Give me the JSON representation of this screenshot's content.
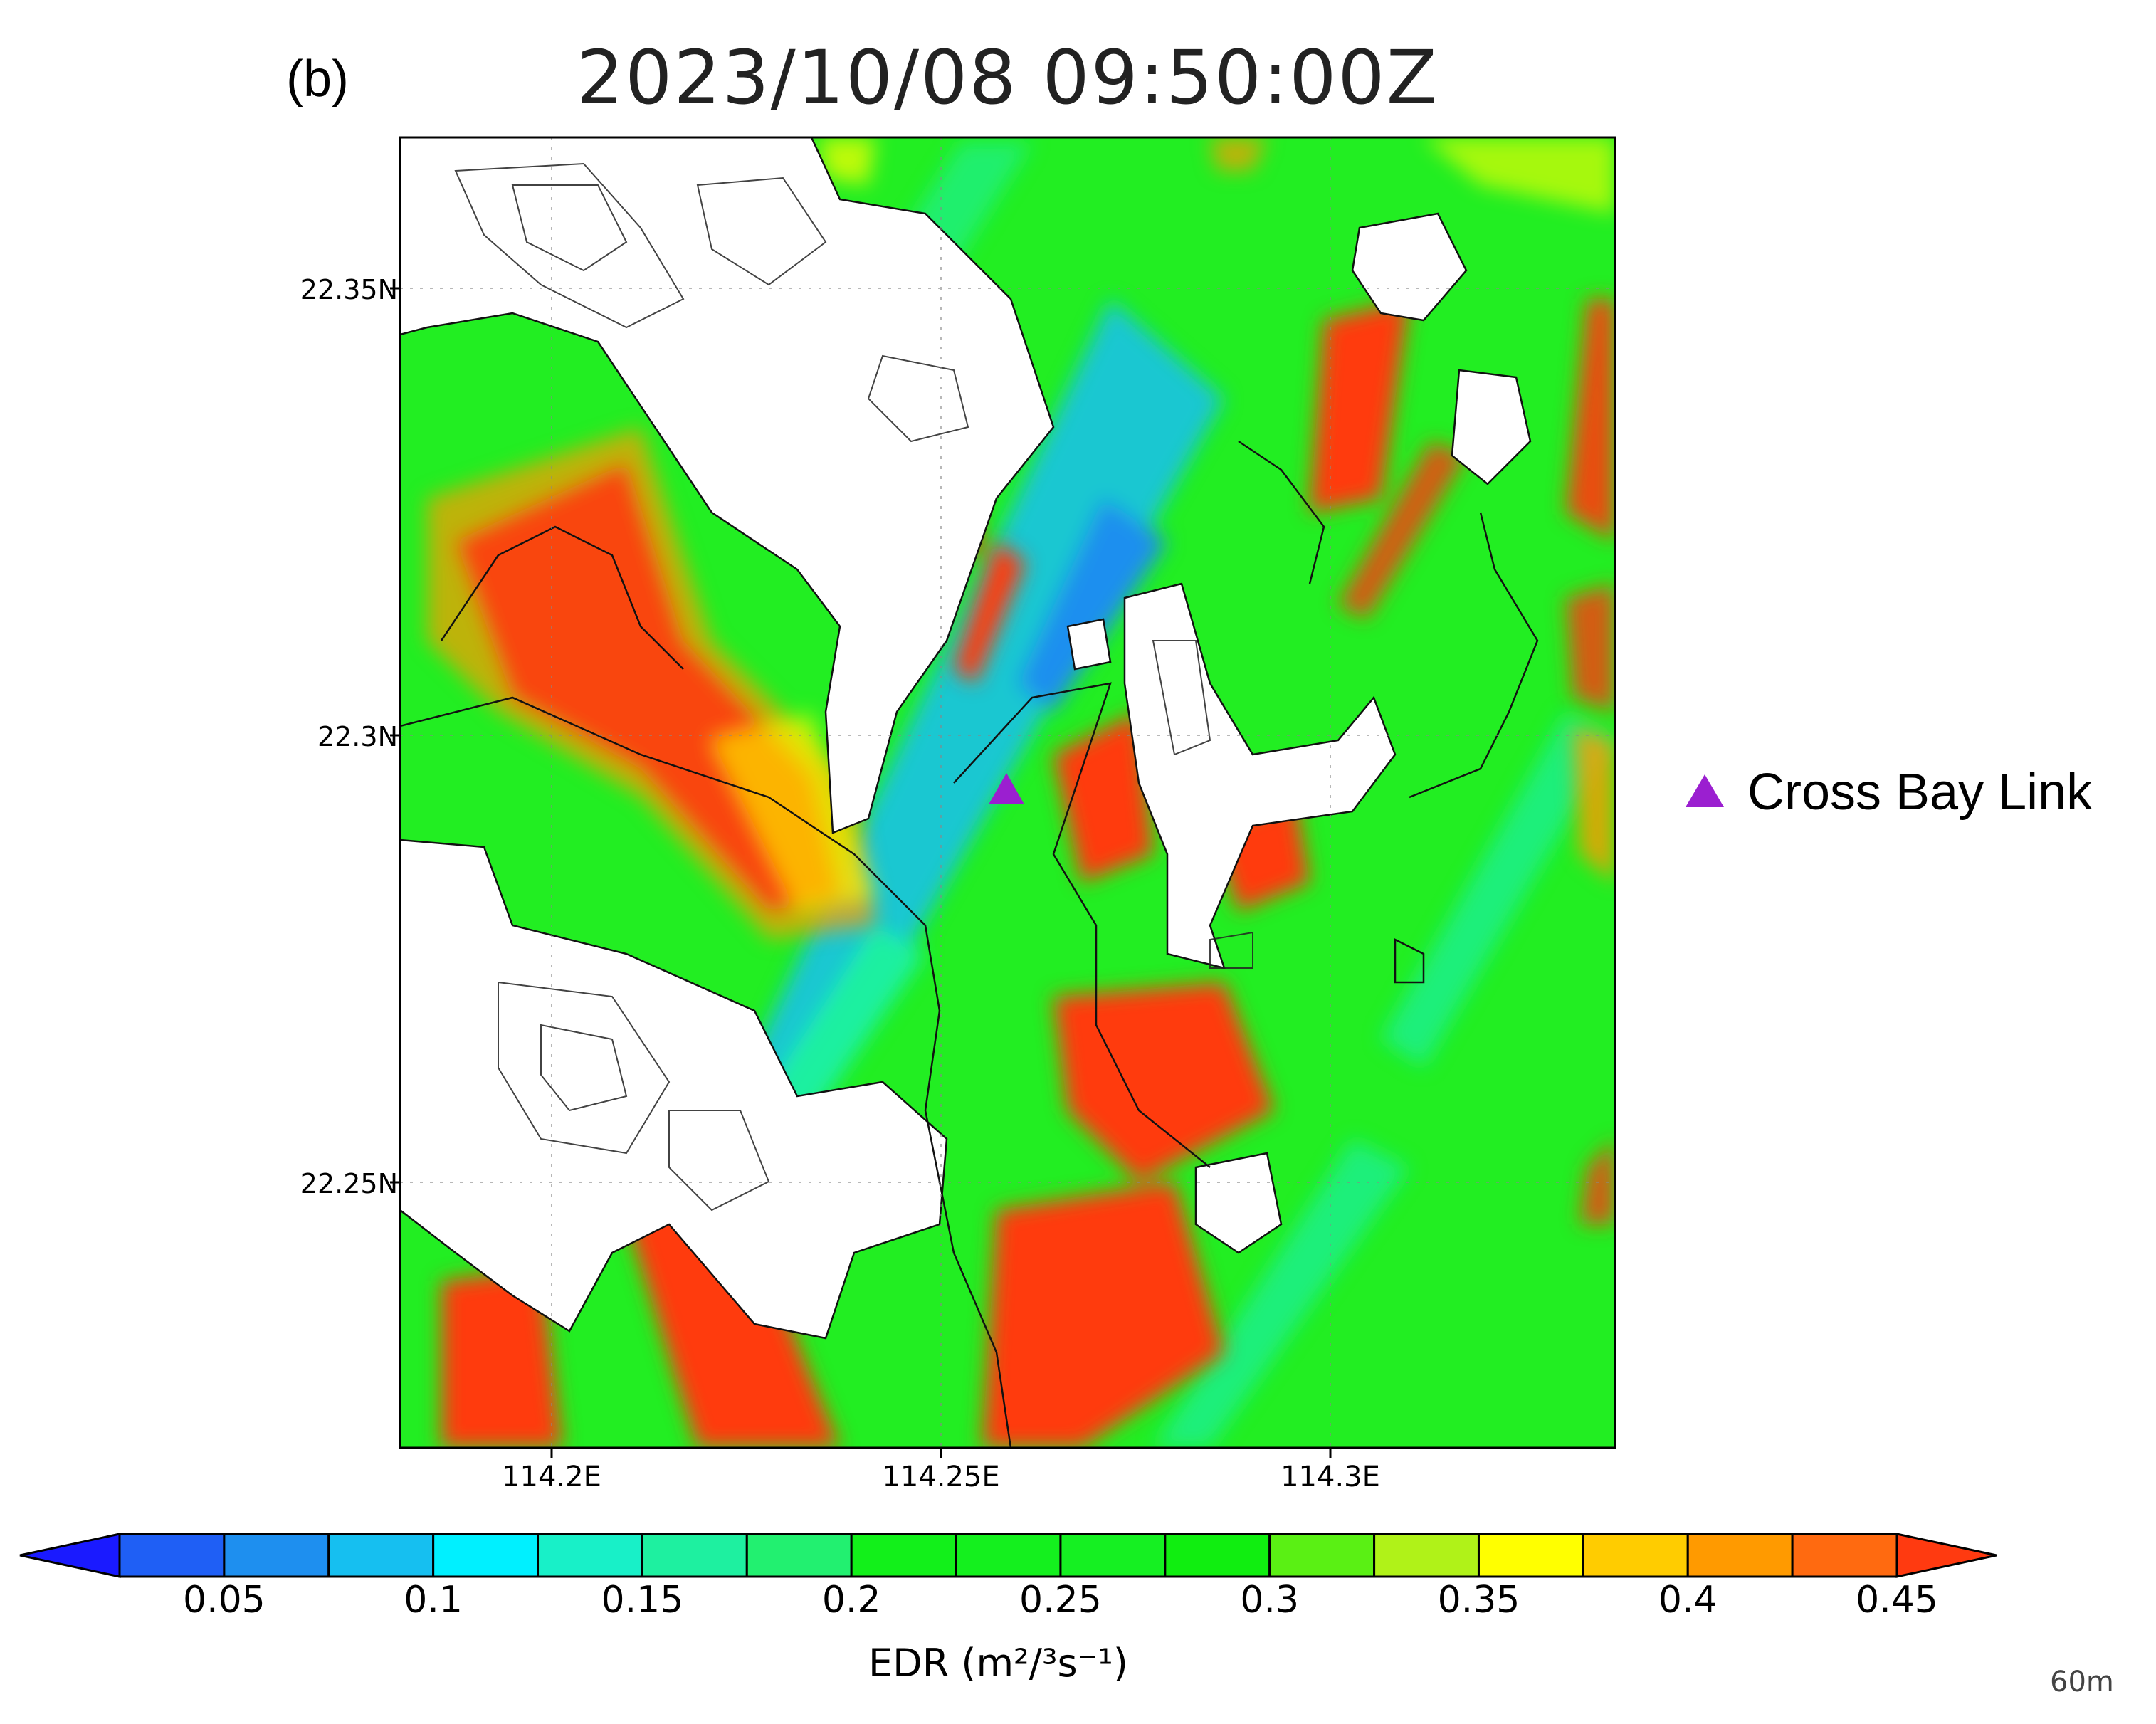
{
  "panel_label": "(b)",
  "title": "2023/10/08 09:50:00Z",
  "axes": {
    "y_ticks": [
      "22.35N",
      "22.3N",
      "22.25N"
    ],
    "x_ticks": [
      "114.2E",
      "114.25E",
      "114.3E"
    ]
  },
  "legend": {
    "marker_label": "Cross Bay Link",
    "marker_color": "#9b1fd0"
  },
  "colorbar": {
    "title": "EDR (m²/³s⁻¹)",
    "tick_labels": [
      "0.05",
      "0.1",
      "0.15",
      "0.2",
      "0.25",
      "0.3",
      "0.35",
      "0.4",
      "0.45"
    ],
    "colors": [
      "#1a1aff",
      "#1f5ff5",
      "#1e8fef",
      "#16bff0",
      "#00f0ff",
      "#18f0c8",
      "#1ef0a0",
      "#22f070",
      "#12f01a",
      "#14f01e",
      "#15f022",
      "#10ee10",
      "#5af014",
      "#b0f218",
      "#ffff00",
      "#ffcc00",
      "#ff9a00",
      "#ff6a10",
      "#ff3a10"
    ]
  },
  "level_note": "60m",
  "map_colors": {
    "base_green": "#22ee22",
    "land": "#ffffff",
    "red": "#ff3a10",
    "orange": "#ff9a00",
    "yellow": "#ffff00",
    "cyan": "#16bff0",
    "blue": "#1e8fef",
    "coast": "#111111"
  }
}
